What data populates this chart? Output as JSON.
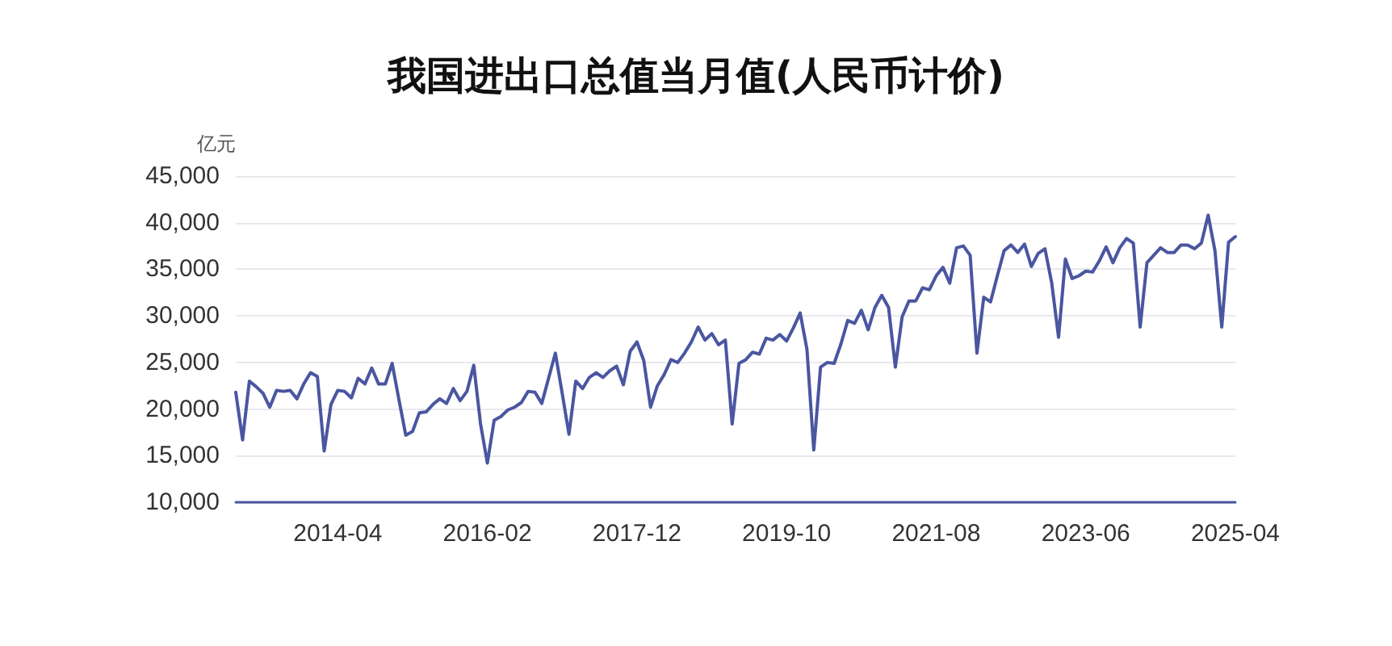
{
  "chart_data": {
    "type": "line",
    "title": "我国进出口总值当月值(人民币计价)",
    "ylabel": "亿元",
    "categories": [
      null,
      null,
      null,
      null,
      null,
      null,
      null,
      null,
      null,
      null,
      null,
      null,
      null,
      null,
      null,
      "2014-04",
      null,
      null,
      null,
      null,
      null,
      null,
      null,
      null,
      null,
      null,
      null,
      null,
      null,
      null,
      null,
      null,
      null,
      null,
      null,
      null,
      null,
      "2016-02",
      null,
      null,
      null,
      null,
      null,
      null,
      null,
      null,
      null,
      null,
      null,
      null,
      null,
      null,
      null,
      null,
      null,
      null,
      null,
      null,
      null,
      "2017-12",
      null,
      null,
      null,
      null,
      null,
      null,
      null,
      null,
      null,
      null,
      null,
      null,
      null,
      null,
      null,
      null,
      null,
      null,
      null,
      null,
      null,
      "2019-10",
      null,
      null,
      null,
      null,
      null,
      null,
      null,
      null,
      null,
      null,
      null,
      null,
      null,
      null,
      null,
      null,
      null,
      null,
      null,
      null,
      null,
      "2021-08",
      null,
      null,
      null,
      null,
      null,
      null,
      null,
      null,
      null,
      null,
      null,
      null,
      null,
      null,
      null,
      null,
      null,
      null,
      null,
      null,
      null,
      "2023-06",
      null,
      null,
      null,
      null,
      null,
      null,
      null,
      null,
      null,
      null,
      null,
      null,
      null,
      null,
      null,
      null,
      null,
      null,
      null,
      null,
      null,
      "2025-04"
    ],
    "series": [
      {
        "color": "#4a56a0",
        "values": [
          21800,
          16700,
          23000,
          22400,
          21700,
          20200,
          22000,
          21900,
          22000,
          21100,
          22700,
          23900,
          23500,
          15500,
          20500,
          22000,
          21900,
          21200,
          23300,
          22700,
          24400,
          22700,
          22700,
          24900,
          21000,
          17200,
          17600,
          19600,
          19700,
          20500,
          21100,
          20600,
          22200,
          20900,
          21900,
          24700,
          18400,
          14200,
          18800,
          19200,
          19900,
          20200,
          20700,
          21900,
          21800,
          20600,
          23300,
          26000,
          21700,
          17300,
          23000,
          22200,
          23400,
          23900,
          23400,
          24100,
          24600,
          22600,
          26200,
          27200,
          25200,
          20200,
          22500,
          23700,
          25300,
          25000,
          26000,
          27200,
          28800,
          27400,
          28100,
          26900,
          27400,
          18400,
          24900,
          25300,
          26100,
          25900,
          27600,
          27400,
          28000,
          27300,
          28700,
          30300,
          26400,
          15600,
          24500,
          25000,
          24900,
          27000,
          29500,
          29200,
          30600,
          28500,
          30900,
          32200,
          30900,
          24500,
          29900,
          31600,
          31600,
          33000,
          32800,
          34300,
          35200,
          33500,
          37300,
          37500,
          36500,
          26000,
          32000,
          31500,
          34300,
          37000,
          37600,
          36800,
          37700,
          35300,
          36700,
          37200,
          33500,
          27700,
          36100,
          34000,
          34300,
          34800,
          34700,
          35900,
          37400,
          35700,
          37300,
          38300,
          37800,
          28800,
          35700,
          36500,
          37300,
          36800,
          36800,
          37600,
          37600,
          37200,
          37800,
          40800,
          37000,
          28800,
          37900,
          38500
        ]
      }
    ],
    "ylim": [
      10000,
      45000
    ],
    "yticks": [
      {
        "value": 10000,
        "label": "10,000"
      },
      {
        "value": 15000,
        "label": "15,000"
      },
      {
        "value": 20000,
        "label": "20,000"
      },
      {
        "value": 25000,
        "label": "25,000"
      },
      {
        "value": 30000,
        "label": "30,000"
      },
      {
        "value": 35000,
        "label": "35,000"
      },
      {
        "value": 40000,
        "label": "40,000"
      },
      {
        "value": 45000,
        "label": "45,000"
      }
    ],
    "grid": "y",
    "marker": "none",
    "line_style": "solid"
  }
}
